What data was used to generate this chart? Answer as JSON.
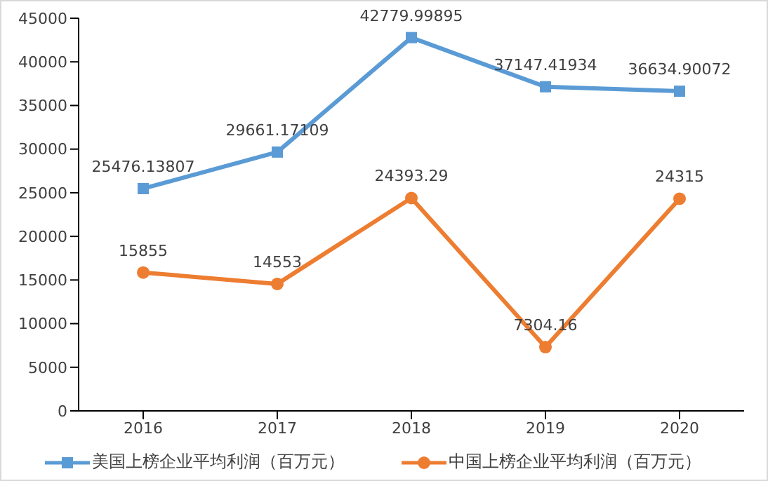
{
  "chart_data": {
    "type": "line",
    "categories": [
      "2016",
      "2017",
      "2018",
      "2019",
      "2020"
    ],
    "series": [
      {
        "name": "美国上榜企业平均利润（百万元）",
        "color": "#5b9bd5",
        "marker": "square",
        "values": [
          25476.13807,
          29661.17109,
          42779.99895,
          37147.41934,
          36634.90072
        ]
      },
      {
        "name": "中国上榜企业平均利润（百万元）",
        "color": "#ed7d31",
        "marker": "circle",
        "values": [
          15855,
          14553,
          24393.29,
          7304.16,
          24315
        ]
      }
    ],
    "ylim": [
      0,
      45000
    ],
    "yticks": [
      0,
      5000,
      10000,
      15000,
      20000,
      25000,
      30000,
      35000,
      40000,
      45000
    ],
    "grid": false,
    "legend": "bottom",
    "data_labels": true,
    "line_style": "solid"
  }
}
